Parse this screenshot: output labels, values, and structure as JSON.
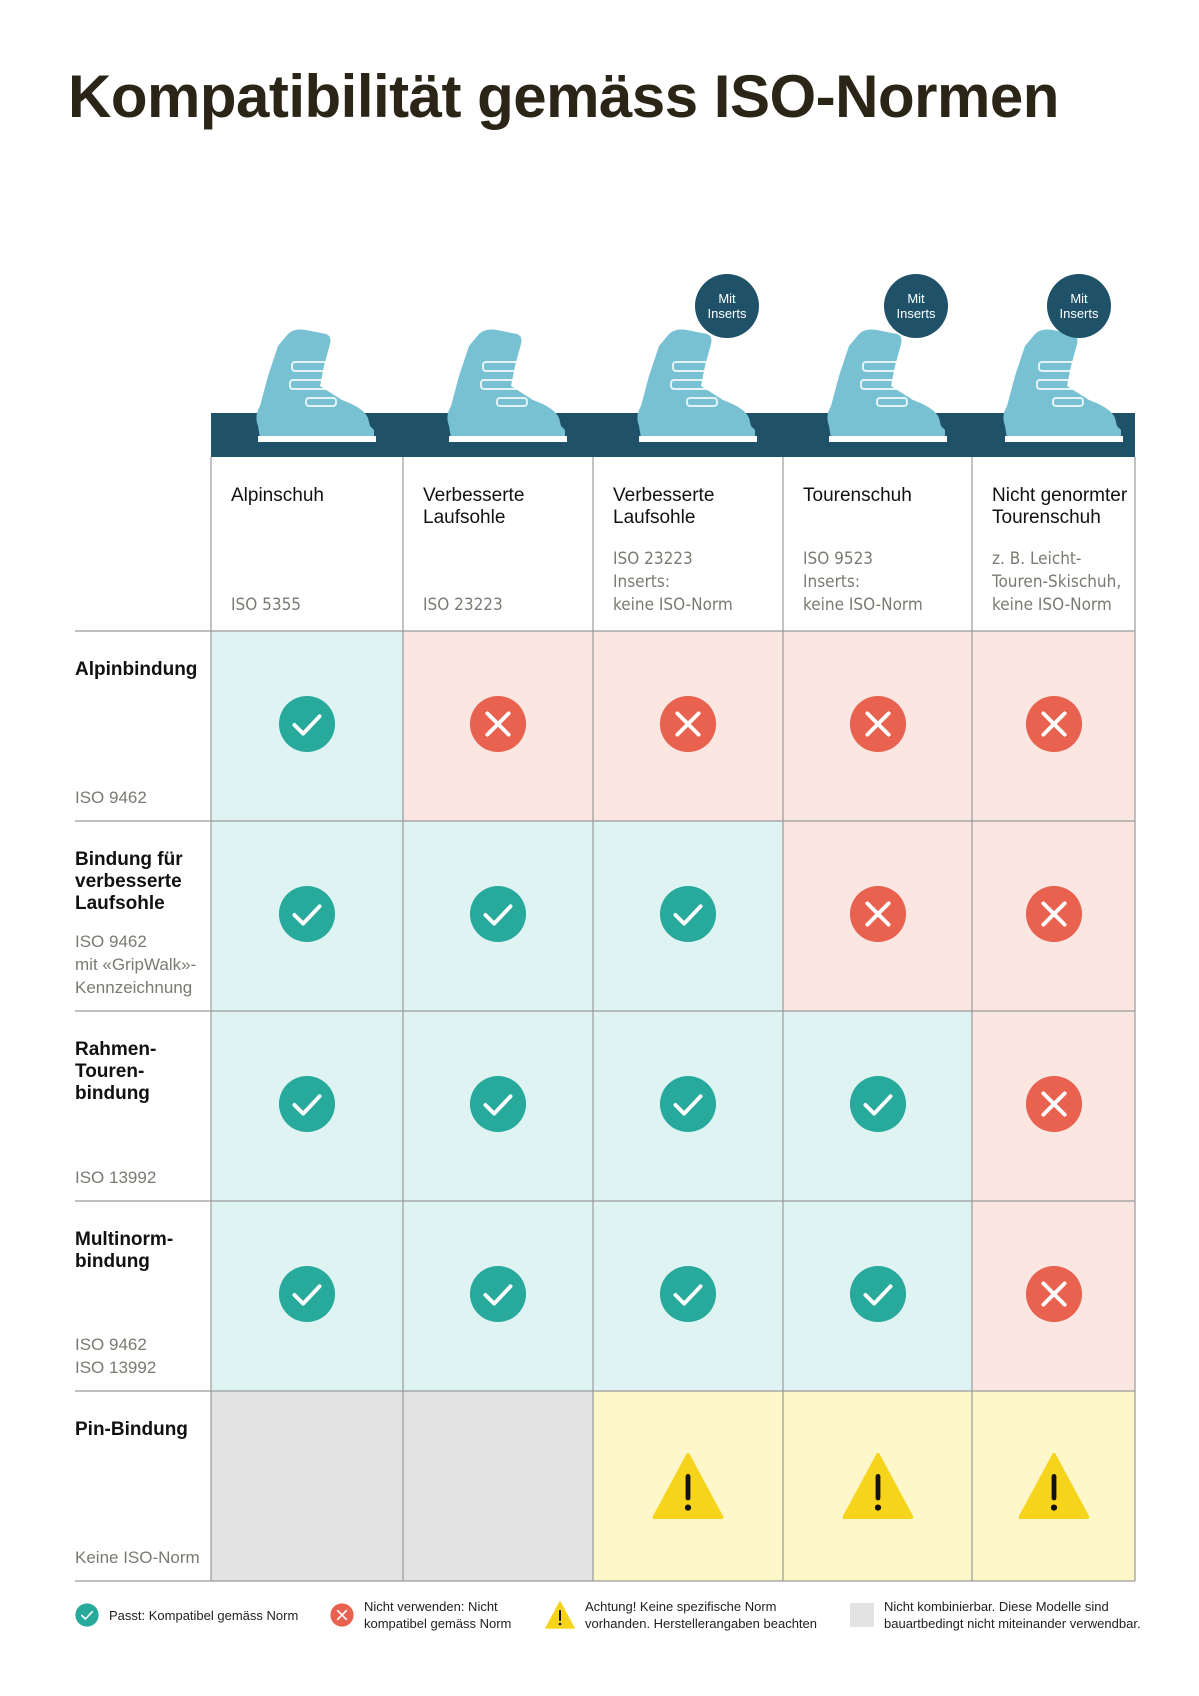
{
  "title": "Kompatibilität gemäss ISO-Normen",
  "colors": {
    "band": "#1f5269",
    "boot": "#78c1d3",
    "ok": "#27aa9b",
    "no": "#e8624f",
    "warn": "#f6d41c",
    "na": "#e3e3e3"
  },
  "chart_data": {
    "type": "table",
    "title": "Kompatibilität gemäss ISO-Normen",
    "columns": [
      {
        "title": "Alpinschuh",
        "norm": "ISO 5355",
        "badge": ""
      },
      {
        "title": "Verbesserte\nLaufsohle",
        "norm": "ISO 23223",
        "badge": ""
      },
      {
        "title": "Verbesserte\nLaufsohle",
        "norm": "ISO 23223\nInserts:\nkeine ISO-Norm",
        "badge": "Mit\nInserts"
      },
      {
        "title": "Tourenschuh",
        "norm": "ISO 9523\nInserts:\nkeine ISO-Norm",
        "badge": "Mit\nInserts"
      },
      {
        "title": "Nicht genormter\nTourenschuh",
        "norm": "z. B. Leicht-\nTouren-Skischuh,\nkeine ISO-Norm",
        "badge": "Mit\nInserts"
      }
    ],
    "rows": [
      {
        "title": "Alpinbindung",
        "norm": "ISO 9462",
        "values": [
          "ok",
          "no",
          "no",
          "no",
          "no"
        ]
      },
      {
        "title": "Bindung für\nverbesserte\nLaufsohle",
        "norm": "ISO 9462\nmit «GripWalk»-\nKennzeichnung",
        "values": [
          "ok",
          "ok",
          "ok",
          "no",
          "no"
        ]
      },
      {
        "title": "Rahmen-\nTouren-\nbindung",
        "norm": "ISO 13992",
        "values": [
          "ok",
          "ok",
          "ok",
          "ok",
          "no"
        ]
      },
      {
        "title": "Multinorm-\nbindung",
        "norm": "ISO 9462\nISO 13992",
        "values": [
          "ok",
          "ok",
          "ok",
          "ok",
          "no"
        ]
      },
      {
        "title": "Pin-Bindung",
        "norm": "Keine ISO-Norm",
        "values": [
          "na",
          "na",
          "warn",
          "warn",
          "warn"
        ]
      }
    ],
    "legend": [
      {
        "key": "ok",
        "label": "Passt: Kompatibel gemäss Norm"
      },
      {
        "key": "no",
        "label": "Nicht verwenden: Nicht\nkompatibel gemäss Norm"
      },
      {
        "key": "warn",
        "label": "Achtung! Keine spezifische Norm\nvorhanden. Herstellerangaben beachten"
      },
      {
        "key": "na",
        "label": "Nicht kombinierbar. Diese Modelle sind\nbauartbedingt nicht miteinander verwendbar."
      }
    ]
  }
}
